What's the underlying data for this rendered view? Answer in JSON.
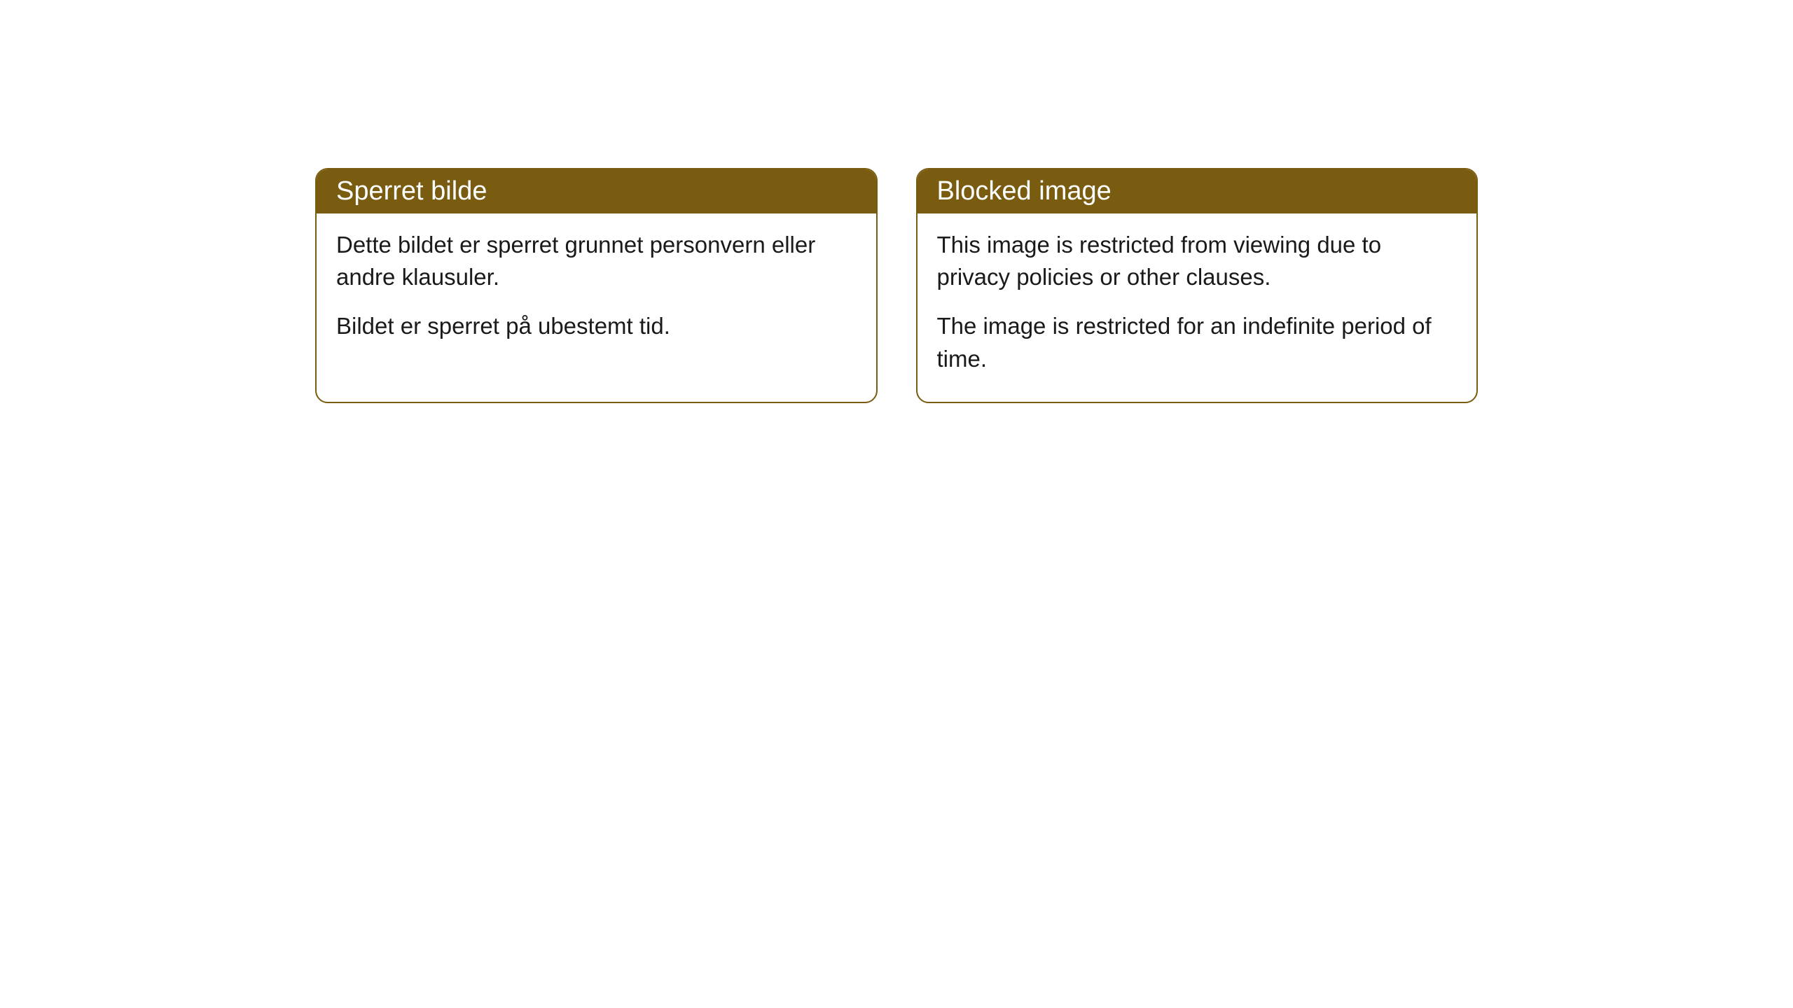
{
  "cards": [
    {
      "title": "Sperret bilde",
      "paragraph1": "Dette bildet er sperret grunnet personvern eller andre klausuler.",
      "paragraph2": "Bildet er sperret på ubestemt tid."
    },
    {
      "title": "Blocked image",
      "paragraph1": "This image is restricted from viewing due to privacy policies or other clauses.",
      "paragraph2": "The image is restricted for an indefinite period of time."
    }
  ],
  "styling": {
    "header_background": "#7a5c10",
    "header_text_color": "#ffffff",
    "border_color": "#7a5c10",
    "body_background": "#ffffff",
    "body_text_color": "#1a1a1a",
    "border_radius": 18,
    "header_fontsize": 38,
    "body_fontsize": 33
  }
}
